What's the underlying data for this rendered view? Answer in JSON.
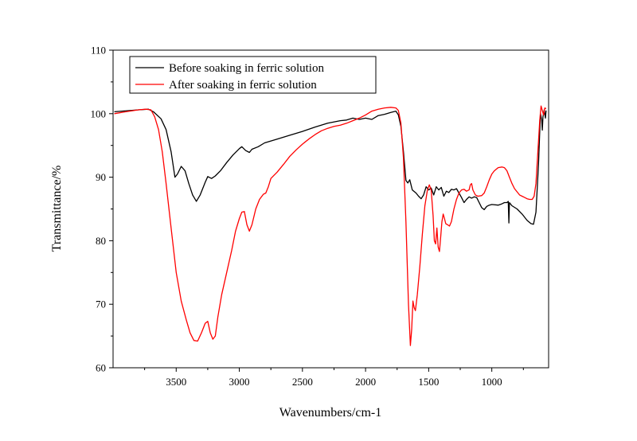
{
  "chart_data": {
    "type": "line",
    "title": "",
    "xlabel": "Wavenumbers/cm-1",
    "ylabel": "Transmittance/%",
    "xlim": [
      4000,
      550
    ],
    "ylim": [
      60,
      110
    ],
    "x_reversed": true,
    "x_ticks": [
      3500,
      3000,
      2500,
      2000,
      1500,
      1000
    ],
    "y_ticks": [
      60,
      70,
      80,
      90,
      100,
      110
    ],
    "grid": false,
    "legend_position": "top-left",
    "series": [
      {
        "name": "Before soaking in ferric solution",
        "color": "#000000",
        "points": [
          [
            3990,
            100.3
          ],
          [
            3800,
            100.6
          ],
          [
            3720,
            100.7
          ],
          [
            3680,
            100.3
          ],
          [
            3620,
            99.2
          ],
          [
            3580,
            97.5
          ],
          [
            3540,
            94.0
          ],
          [
            3510,
            90.0
          ],
          [
            3490,
            90.5
          ],
          [
            3460,
            91.7
          ],
          [
            3430,
            91.0
          ],
          [
            3400,
            89.0
          ],
          [
            3370,
            87.2
          ],
          [
            3340,
            86.2
          ],
          [
            3310,
            87.2
          ],
          [
            3270,
            89.2
          ],
          [
            3250,
            90.1
          ],
          [
            3220,
            89.8
          ],
          [
            3190,
            90.2
          ],
          [
            3150,
            91.0
          ],
          [
            3100,
            92.3
          ],
          [
            3050,
            93.5
          ],
          [
            3000,
            94.5
          ],
          [
            2980,
            94.8
          ],
          [
            2950,
            94.2
          ],
          [
            2920,
            93.9
          ],
          [
            2900,
            94.4
          ],
          [
            2850,
            94.8
          ],
          [
            2800,
            95.4
          ],
          [
            2700,
            96.0
          ],
          [
            2600,
            96.6
          ],
          [
            2500,
            97.2
          ],
          [
            2400,
            97.9
          ],
          [
            2300,
            98.5
          ],
          [
            2200,
            98.9
          ],
          [
            2150,
            99.0
          ],
          [
            2100,
            99.3
          ],
          [
            2050,
            99.1
          ],
          [
            2000,
            99.3
          ],
          [
            1950,
            99.1
          ],
          [
            1900,
            99.7
          ],
          [
            1850,
            99.9
          ],
          [
            1800,
            100.2
          ],
          [
            1760,
            100.4
          ],
          [
            1740,
            99.8
          ],
          [
            1720,
            98.0
          ],
          [
            1700,
            94.0
          ],
          [
            1680,
            89.5
          ],
          [
            1665,
            89.1
          ],
          [
            1650,
            89.6
          ],
          [
            1630,
            88.0
          ],
          [
            1600,
            87.5
          ],
          [
            1580,
            87.0
          ],
          [
            1560,
            86.6
          ],
          [
            1540,
            87.2
          ],
          [
            1520,
            88.5
          ],
          [
            1500,
            88.0
          ],
          [
            1480,
            88.3
          ],
          [
            1460,
            87.2
          ],
          [
            1440,
            88.5
          ],
          [
            1420,
            88.0
          ],
          [
            1400,
            88.4
          ],
          [
            1380,
            87.0
          ],
          [
            1360,
            87.8
          ],
          [
            1340,
            87.6
          ],
          [
            1320,
            88.1
          ],
          [
            1300,
            88.0
          ],
          [
            1280,
            88.2
          ],
          [
            1260,
            87.5
          ],
          [
            1240,
            86.8
          ],
          [
            1220,
            86.0
          ],
          [
            1200,
            86.5
          ],
          [
            1180,
            86.9
          ],
          [
            1160,
            86.7
          ],
          [
            1140,
            86.9
          ],
          [
            1120,
            86.8
          ],
          [
            1100,
            86.0
          ],
          [
            1080,
            85.2
          ],
          [
            1060,
            84.9
          ],
          [
            1040,
            85.4
          ],
          [
            1020,
            85.6
          ],
          [
            1000,
            85.7
          ],
          [
            950,
            85.6
          ],
          [
            920,
            85.8
          ],
          [
            900,
            86.0
          ],
          [
            880,
            86.0
          ],
          [
            870,
            86.2
          ],
          [
            865,
            82.8
          ],
          [
            860,
            86.0
          ],
          [
            840,
            85.5
          ],
          [
            800,
            85.0
          ],
          [
            760,
            84.2
          ],
          [
            720,
            83.2
          ],
          [
            690,
            82.7
          ],
          [
            670,
            82.6
          ],
          [
            650,
            84.5
          ],
          [
            630,
            92.0
          ],
          [
            615,
            100.0
          ],
          [
            605,
            99.0
          ],
          [
            600,
            97.4
          ],
          [
            595,
            99.5
          ],
          [
            585,
            100.6
          ],
          [
            575,
            99.3
          ],
          [
            570,
            100.5
          ]
        ]
      },
      {
        "name": "After soaking in ferric solution",
        "color": "#ff0000",
        "points": [
          [
            3990,
            100.0
          ],
          [
            3900,
            100.3
          ],
          [
            3800,
            100.6
          ],
          [
            3740,
            100.7
          ],
          [
            3700,
            100.6
          ],
          [
            3670,
            99.5
          ],
          [
            3640,
            97.5
          ],
          [
            3610,
            94.0
          ],
          [
            3580,
            89.0
          ],
          [
            3540,
            82.0
          ],
          [
            3500,
            75.0
          ],
          [
            3460,
            70.5
          ],
          [
            3420,
            67.5
          ],
          [
            3390,
            65.5
          ],
          [
            3360,
            64.3
          ],
          [
            3330,
            64.2
          ],
          [
            3300,
            65.5
          ],
          [
            3270,
            67.0
          ],
          [
            3250,
            67.3
          ],
          [
            3230,
            65.5
          ],
          [
            3210,
            64.5
          ],
          [
            3190,
            65.0
          ],
          [
            3170,
            68.0
          ],
          [
            3140,
            71.5
          ],
          [
            3100,
            75.0
          ],
          [
            3060,
            78.5
          ],
          [
            3030,
            81.5
          ],
          [
            3000,
            83.5
          ],
          [
            2980,
            84.5
          ],
          [
            2960,
            84.6
          ],
          [
            2940,
            82.5
          ],
          [
            2920,
            81.5
          ],
          [
            2900,
            82.5
          ],
          [
            2870,
            85.0
          ],
          [
            2840,
            86.5
          ],
          [
            2810,
            87.3
          ],
          [
            2790,
            87.5
          ],
          [
            2770,
            88.5
          ],
          [
            2750,
            89.8
          ],
          [
            2700,
            90.8
          ],
          [
            2650,
            92.0
          ],
          [
            2600,
            93.3
          ],
          [
            2550,
            94.3
          ],
          [
            2500,
            95.2
          ],
          [
            2450,
            96.0
          ],
          [
            2400,
            96.7
          ],
          [
            2350,
            97.3
          ],
          [
            2300,
            97.7
          ],
          [
            2250,
            98.0
          ],
          [
            2200,
            98.2
          ],
          [
            2150,
            98.5
          ],
          [
            2100,
            98.9
          ],
          [
            2050,
            99.3
          ],
          [
            2000,
            99.8
          ],
          [
            1950,
            100.4
          ],
          [
            1900,
            100.7
          ],
          [
            1850,
            100.9
          ],
          [
            1800,
            101.0
          ],
          [
            1760,
            100.9
          ],
          [
            1740,
            100.5
          ],
          [
            1720,
            98.5
          ],
          [
            1700,
            93.0
          ],
          [
            1680,
            83.0
          ],
          [
            1660,
            70.0
          ],
          [
            1645,
            63.5
          ],
          [
            1635,
            66.0
          ],
          [
            1625,
            70.5
          ],
          [
            1615,
            69.5
          ],
          [
            1605,
            69.0
          ],
          [
            1590,
            71.5
          ],
          [
            1570,
            76.0
          ],
          [
            1550,
            81.0
          ],
          [
            1530,
            85.5
          ],
          [
            1510,
            88.0
          ],
          [
            1495,
            88.8
          ],
          [
            1480,
            88.0
          ],
          [
            1465,
            84.0
          ],
          [
            1455,
            80.0
          ],
          [
            1445,
            79.5
          ],
          [
            1435,
            82.0
          ],
          [
            1425,
            79.0
          ],
          [
            1415,
            78.3
          ],
          [
            1405,
            80.5
          ],
          [
            1395,
            83.0
          ],
          [
            1385,
            84.2
          ],
          [
            1375,
            83.5
          ],
          [
            1365,
            82.7
          ],
          [
            1350,
            82.5
          ],
          [
            1335,
            82.3
          ],
          [
            1320,
            83.0
          ],
          [
            1300,
            85.0
          ],
          [
            1280,
            86.5
          ],
          [
            1260,
            87.5
          ],
          [
            1240,
            88.0
          ],
          [
            1220,
            88.1
          ],
          [
            1200,
            87.8
          ],
          [
            1180,
            88.0
          ],
          [
            1170,
            88.8
          ],
          [
            1160,
            89.0
          ],
          [
            1150,
            88.0
          ],
          [
            1130,
            87.2
          ],
          [
            1110,
            87.0
          ],
          [
            1080,
            87.1
          ],
          [
            1060,
            87.5
          ],
          [
            1040,
            88.5
          ],
          [
            1020,
            89.6
          ],
          [
            1000,
            90.5
          ],
          [
            980,
            91.0
          ],
          [
            950,
            91.5
          ],
          [
            920,
            91.6
          ],
          [
            900,
            91.5
          ],
          [
            880,
            91.0
          ],
          [
            860,
            90.0
          ],
          [
            840,
            89.0
          ],
          [
            820,
            88.2
          ],
          [
            800,
            87.7
          ],
          [
            780,
            87.2
          ],
          [
            760,
            87.0
          ],
          [
            740,
            86.8
          ],
          [
            720,
            86.6
          ],
          [
            700,
            86.5
          ],
          [
            680,
            86.5
          ],
          [
            665,
            87.0
          ],
          [
            650,
            89.0
          ],
          [
            635,
            94.0
          ],
          [
            620,
            99.0
          ],
          [
            610,
            101.2
          ],
          [
            600,
            100.5
          ],
          [
            590,
            99.8
          ],
          [
            580,
            100.9
          ],
          [
            570,
            100.8
          ]
        ]
      }
    ]
  }
}
